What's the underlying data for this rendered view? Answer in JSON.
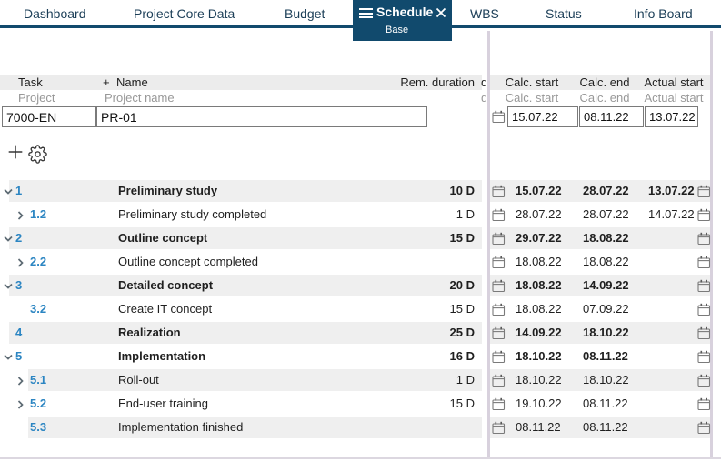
{
  "tabbar": {
    "tabs": [
      {
        "label": "Dashboard"
      },
      {
        "label": "Project Core Data"
      },
      {
        "label": "Budget"
      },
      {
        "label": "Schedule",
        "sublabel": "Base",
        "active": true
      },
      {
        "label": "WBS"
      },
      {
        "label": "Status"
      },
      {
        "label": "Info Board"
      }
    ]
  },
  "header": {
    "col_task": "Task",
    "col_name_plus": "+",
    "col_name": "Name",
    "col_rem_duration": "Rem. duration",
    "col_calc_start": "Calc. start",
    "col_calc_end": "Calc. end",
    "col_actual_start": "Actual start",
    "clipped_fragment": "d"
  },
  "subheader": {
    "task": "Project",
    "name": "Project name",
    "calc_start": "Calc. start",
    "calc_end": "Calc. end",
    "actual_start": "Actual start",
    "clipped_fragment": "d"
  },
  "project_row": {
    "task_id": "7000-EN",
    "project_name": "PR-01",
    "calc_start": "15.07.22",
    "calc_end": "08.11.22",
    "actual_start": "13.07.22"
  },
  "rows": [
    {
      "number": "1",
      "name": "Preliminary study",
      "rem_duration": "10 D",
      "calc_start": "15.07.22",
      "calc_end": "28.07.22",
      "actual_start": "13.07.22"
    },
    {
      "number": "1.2",
      "name": "Preliminary study completed",
      "rem_duration": "1 D",
      "calc_start": "28.07.22",
      "calc_end": "28.07.22",
      "actual_start": "14.07.22"
    },
    {
      "number": "2",
      "name": "Outline concept",
      "rem_duration": "15 D",
      "calc_start": "29.07.22",
      "calc_end": "18.08.22",
      "actual_start": ""
    },
    {
      "number": "2.2",
      "name": "Outline concept completed",
      "rem_duration": "",
      "calc_start": "18.08.22",
      "calc_end": "18.08.22",
      "actual_start": ""
    },
    {
      "number": "3",
      "name": "Detailed concept",
      "rem_duration": "20 D",
      "calc_start": "18.08.22",
      "calc_end": "14.09.22",
      "actual_start": ""
    },
    {
      "number": "3.2",
      "name": "Create IT concept",
      "rem_duration": "15 D",
      "calc_start": "18.08.22",
      "calc_end": "07.09.22",
      "actual_start": ""
    },
    {
      "number": "4",
      "name": "Realization",
      "rem_duration": "25 D",
      "calc_start": "14.09.22",
      "calc_end": "18.10.22",
      "actual_start": ""
    },
    {
      "number": "5",
      "name": "Implementation",
      "rem_duration": "16 D",
      "calc_start": "18.10.22",
      "calc_end": "08.11.22",
      "actual_start": ""
    },
    {
      "number": "5.1",
      "name": "Roll-out",
      "rem_duration": "1 D",
      "calc_start": "18.10.22",
      "calc_end": "18.10.22",
      "actual_start": ""
    },
    {
      "number": "5.2",
      "name": "End-user training",
      "rem_duration": "15 D",
      "calc_start": "19.10.22",
      "calc_end": "08.11.22",
      "actual_start": ""
    },
    {
      "number": "5.3",
      "name": "Implementation finished",
      "rem_duration": "",
      "calc_start": "08.11.22",
      "calc_end": "08.11.22",
      "actual_start": ""
    }
  ],
  "icons": {
    "hamburger": "hamburger-icon",
    "close": "close-icon",
    "plus": "plus-icon",
    "gear": "gear-icon",
    "calendar": "calendar-icon",
    "chevron_down": "chevron-down-icon",
    "chevron_right": "chevron-right-icon"
  },
  "colors": {
    "active_tab": "#114a6d",
    "accent_blue": "#2b85c2",
    "row_stripe": "#efefef",
    "header_bg": "#ececec",
    "splitter": "#d8d1dd"
  }
}
